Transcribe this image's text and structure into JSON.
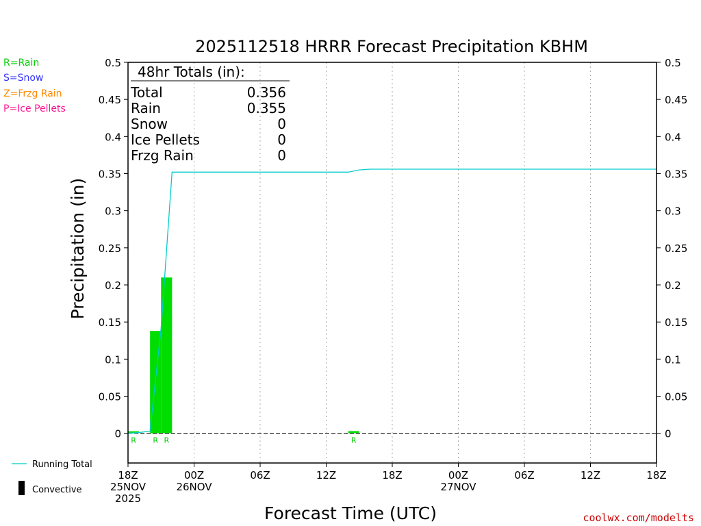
{
  "title": "2025112518 HRRR Forecast Precipitation KBHM",
  "type_key": [
    {
      "label": "R=Rain",
      "color": "#00cc00"
    },
    {
      "label": "S=Snow",
      "color": "#3333ff"
    },
    {
      "label": "Z=Frzg Rain",
      "color": "#ff8800"
    },
    {
      "label": "P=Ice Pellets",
      "color": "#ff1493"
    }
  ],
  "totals": {
    "heading": "48hr Totals (in):",
    "rows": [
      {
        "label": "Total",
        "value": "0.356"
      },
      {
        "label": "Rain",
        "value": "0.355"
      },
      {
        "label": "Snow",
        "value": "0"
      },
      {
        "label": "Ice Pellets",
        "value": "0"
      },
      {
        "label": "Frzg Rain",
        "value": "0"
      }
    ]
  },
  "legend": {
    "running_total": "Running Total",
    "convective": "Convective"
  },
  "credit": "coolwx.com/modelts",
  "colors": {
    "bar": "#00dd00",
    "running_total": "#00cccc",
    "rain_label": "#00cc00",
    "credit": "#cc0000"
  },
  "chart_data": {
    "type": "bar",
    "xlabel": "Forecast Time (UTC)",
    "ylabel": "Precipitation (in)",
    "xlim": [
      0,
      48
    ],
    "ylim": [
      -0.04,
      0.5
    ],
    "grid": "vertical dotted lines at 6-hour intervals",
    "x_ticks": [
      {
        "hour": 0,
        "lines": [
          "18Z",
          "25NOV",
          "2025"
        ]
      },
      {
        "hour": 6,
        "lines": [
          "00Z",
          "26NOV"
        ]
      },
      {
        "hour": 12,
        "lines": [
          "06Z"
        ]
      },
      {
        "hour": 18,
        "lines": [
          "12Z"
        ]
      },
      {
        "hour": 24,
        "lines": [
          "18Z"
        ]
      },
      {
        "hour": 30,
        "lines": [
          "00Z",
          "27NOV"
        ]
      },
      {
        "hour": 36,
        "lines": [
          "06Z"
        ]
      },
      {
        "hour": 42,
        "lines": [
          "12Z"
        ]
      },
      {
        "hour": 48,
        "lines": [
          "18Z"
        ]
      }
    ],
    "y_ticks": [
      "0",
      "0.05",
      "0.1",
      "0.15",
      "0.2",
      "0.25",
      "0.3",
      "0.35",
      "0.4",
      "0.45",
      "0.5"
    ],
    "bars": [
      {
        "hour": 1,
        "value": 0.001,
        "ptype": "R"
      },
      {
        "hour": 3,
        "value": 0.138,
        "ptype": "R"
      },
      {
        "hour": 4,
        "value": 0.21,
        "ptype": "R"
      },
      {
        "hour": 21,
        "value": 0.003,
        "ptype": "R"
      }
    ],
    "running_total": [
      [
        0,
        0
      ],
      [
        1,
        0.001
      ],
      [
        2,
        0.003
      ],
      [
        3,
        0.141
      ],
      [
        4,
        0.352
      ],
      [
        20,
        0.352
      ],
      [
        21,
        0.355
      ],
      [
        22,
        0.356
      ],
      [
        48,
        0.356
      ]
    ]
  }
}
